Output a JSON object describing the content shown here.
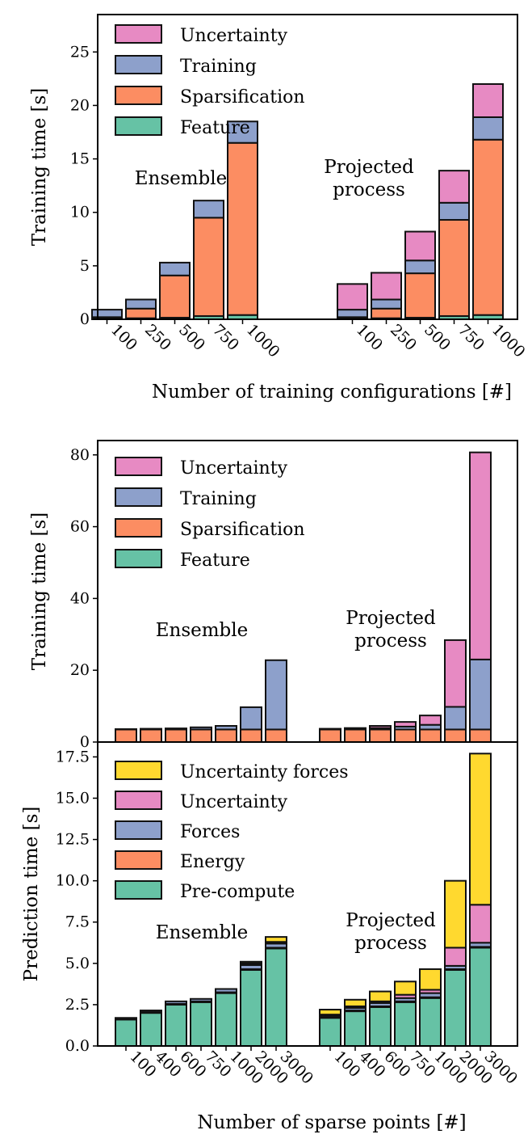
{
  "colors": {
    "Feature": "#66c2a5",
    "Sparsification": "#fc8d62",
    "Training": "#8da0cb",
    "Uncertainty": "#e78ac3",
    "Pre-compute": "#66c2a5",
    "Energy": "#fc8d62",
    "Forces": "#8da0cb",
    "Uncertainty forces": "#ffd92f"
  },
  "chart_data": [
    {
      "id": "top",
      "type": "bar",
      "stacked": true,
      "xlabel": "Number of training configurations [#]",
      "ylabel": "Training time [s]",
      "ylim": [
        0,
        28.5
      ],
      "yticks": [
        0,
        5,
        10,
        15,
        20,
        25
      ],
      "legend_position": "top-left",
      "legend": [
        "Uncertainty",
        "Training",
        "Sparsification",
        "Feature"
      ],
      "stack_order": [
        "Feature",
        "Sparsification",
        "Training",
        "Uncertainty"
      ],
      "groups": [
        {
          "label": "Ensemble",
          "categories": [
            "100",
            "250",
            "500",
            "750",
            "1000"
          ],
          "series": [
            {
              "name": "Feature",
              "values": [
                0.05,
                0.1,
                0.15,
                0.3,
                0.4
              ]
            },
            {
              "name": "Sparsification",
              "values": [
                0.15,
                0.9,
                3.95,
                9.2,
                16.1
              ]
            },
            {
              "name": "Training",
              "values": [
                0.7,
                0.85,
                1.2,
                1.6,
                2.0
              ]
            },
            {
              "name": "Uncertainty",
              "values": [
                0,
                0,
                0,
                0,
                0
              ]
            }
          ]
        },
        {
          "label": "Projected\nprocess",
          "categories": [
            "100",
            "250",
            "500",
            "750",
            "1000"
          ],
          "series": [
            {
              "name": "Feature",
              "values": [
                0.05,
                0.1,
                0.15,
                0.3,
                0.4
              ]
            },
            {
              "name": "Sparsification",
              "values": [
                0.15,
                0.9,
                4.15,
                9.0,
                16.4
              ]
            },
            {
              "name": "Training",
              "values": [
                0.7,
                0.85,
                1.2,
                1.6,
                2.1
              ]
            },
            {
              "name": "Uncertainty",
              "values": [
                2.4,
                2.5,
                2.7,
                3.0,
                3.1
              ]
            }
          ]
        }
      ]
    },
    {
      "id": "middle",
      "type": "bar",
      "stacked": true,
      "xlabel": "",
      "ylabel": "Training time [s]",
      "ylim": [
        0,
        84
      ],
      "yticks": [
        0,
        20,
        40,
        60,
        80
      ],
      "legend_position": "top-left",
      "legend": [
        "Uncertainty",
        "Training",
        "Sparsification",
        "Feature"
      ],
      "stack_order": [
        "Feature",
        "Sparsification",
        "Training",
        "Uncertainty"
      ],
      "groups": [
        {
          "label": "Ensemble",
          "categories": [
            "100",
            "400",
            "600",
            "750",
            "1000",
            "2000",
            "3000"
          ],
          "series": [
            {
              "name": "Feature",
              "values": [
                0,
                0,
                0,
                0,
                0,
                0,
                0
              ]
            },
            {
              "name": "Sparsification",
              "values": [
                3.5,
                3.5,
                3.5,
                3.5,
                3.5,
                3.5,
                3.5
              ]
            },
            {
              "name": "Training",
              "values": [
                0.1,
                0.2,
                0.3,
                0.6,
                1.0,
                6.2,
                19.3
              ]
            },
            {
              "name": "Uncertainty",
              "values": [
                0,
                0,
                0,
                0,
                0,
                0,
                0
              ]
            }
          ]
        },
        {
          "label": "Projected\nprocess",
          "categories": [
            "100",
            "400",
            "600",
            "750",
            "1000",
            "2000",
            "3000"
          ],
          "series": [
            {
              "name": "Feature",
              "values": [
                0,
                0,
                0,
                0,
                0,
                0,
                0
              ]
            },
            {
              "name": "Sparsification",
              "values": [
                3.5,
                3.5,
                3.5,
                3.5,
                3.5,
                3.5,
                3.5
              ]
            },
            {
              "name": "Training",
              "values": [
                0.1,
                0.2,
                0.4,
                0.8,
                1.3,
                6.3,
                19.5
              ]
            },
            {
              "name": "Uncertainty",
              "values": [
                0.1,
                0.2,
                0.6,
                1.3,
                2.6,
                18.6,
                57.7
              ]
            }
          ]
        }
      ]
    },
    {
      "id": "bottom",
      "type": "bar",
      "stacked": true,
      "xlabel": "Number of sparse points [#]",
      "ylabel": "Prediction time [s]",
      "ylim": [
        0,
        18.4
      ],
      "yticks": [
        0.0,
        2.5,
        5.0,
        7.5,
        10.0,
        12.5,
        15.0,
        17.5
      ],
      "yticks_labels": [
        "0.0",
        "2.5",
        "5.0",
        "7.5",
        "10.0",
        "12.5",
        "15.0",
        "17.5"
      ],
      "legend_position": "top-left",
      "legend": [
        "Uncertainty forces",
        "Uncertainty",
        "Forces",
        "Energy",
        "Pre-compute"
      ],
      "stack_order": [
        "Pre-compute",
        "Energy",
        "Forces",
        "Uncertainty",
        "Uncertainty forces"
      ],
      "groups": [
        {
          "label": "Ensemble",
          "categories": [
            "100",
            "400",
            "600",
            "750",
            "1000",
            "2000",
            "3000"
          ],
          "series": [
            {
              "name": "Pre-compute",
              "values": [
                1.6,
                2.0,
                2.5,
                2.65,
                3.2,
                4.6,
                5.9
              ]
            },
            {
              "name": "Energy",
              "values": [
                0.05,
                0.05,
                0.05,
                0.05,
                0.05,
                0.05,
                0.05
              ]
            },
            {
              "name": "Forces",
              "values": [
                0.05,
                0.1,
                0.15,
                0.15,
                0.2,
                0.25,
                0.25
              ]
            },
            {
              "name": "Uncertainty",
              "values": [
                0,
                0,
                0,
                0,
                0,
                0.1,
                0.1
              ]
            },
            {
              "name": "Uncertainty forces",
              "values": [
                0,
                0,
                0,
                0,
                0,
                0.1,
                0.3
              ]
            }
          ]
        },
        {
          "label": "Projected\nprocess",
          "categories": [
            "100",
            "400",
            "600",
            "750",
            "1000",
            "2000",
            "3000"
          ],
          "series": [
            {
              "name": "Pre-compute",
              "values": [
                1.7,
                2.1,
                2.35,
                2.65,
                2.9,
                4.6,
                5.95
              ]
            },
            {
              "name": "Energy",
              "values": [
                0.05,
                0.05,
                0.05,
                0.05,
                0.05,
                0.05,
                0.05
              ]
            },
            {
              "name": "Forces",
              "values": [
                0.1,
                0.15,
                0.2,
                0.2,
                0.25,
                0.2,
                0.25
              ]
            },
            {
              "name": "Uncertainty",
              "values": [
                0.05,
                0.1,
                0.1,
                0.2,
                0.2,
                1.1,
                2.3
              ]
            },
            {
              "name": "Uncertainty forces",
              "values": [
                0.3,
                0.4,
                0.6,
                0.8,
                1.25,
                4.05,
                9.15
              ]
            }
          ]
        }
      ]
    }
  ]
}
